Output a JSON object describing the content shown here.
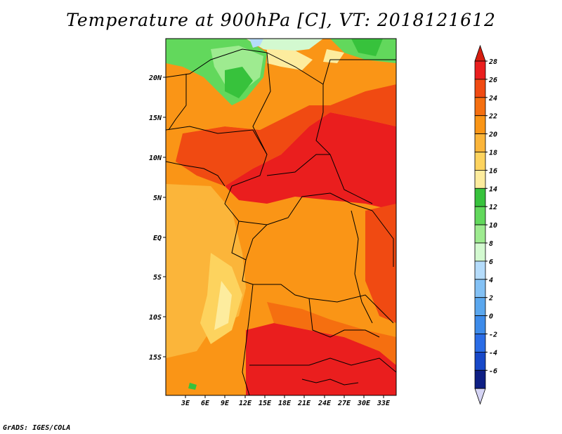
{
  "title": "Temperature at 900hPa [C], VT: 2018121612",
  "credit": "GrADS: IGES/COLA",
  "map": {
    "lat_labels": [
      "20N",
      "15N",
      "10N",
      "5N",
      "EQ",
      "5S",
      "10S",
      "15S"
    ],
    "lon_labels": [
      "3E",
      "6E",
      "9E",
      "12E",
      "15E",
      "18E",
      "21E",
      "24E",
      "27E",
      "30E",
      "33E"
    ]
  },
  "colorbar": {
    "levels": [
      "28",
      "26",
      "24",
      "22",
      "20",
      "18",
      "16",
      "14",
      "12",
      "10",
      "8",
      "6",
      "4",
      "2",
      "0",
      "-2",
      "-4",
      "-6"
    ],
    "colors": [
      "#ea1e1e",
      "#f04a12",
      "#f56f10",
      "#fa9516",
      "#fbb53a",
      "#fdd35e",
      "#fdec9e",
      "#37c23c",
      "#62d85c",
      "#9eeb90",
      "#d3f9d0",
      "#b5dcfb",
      "#83c1f5",
      "#5aa7ee",
      "#3d8bea",
      "#2a6ce6",
      "#1748c8",
      "#0e1f84"
    ],
    "under_color": "#d5d4f4",
    "over_color": "#d61d10"
  }
}
